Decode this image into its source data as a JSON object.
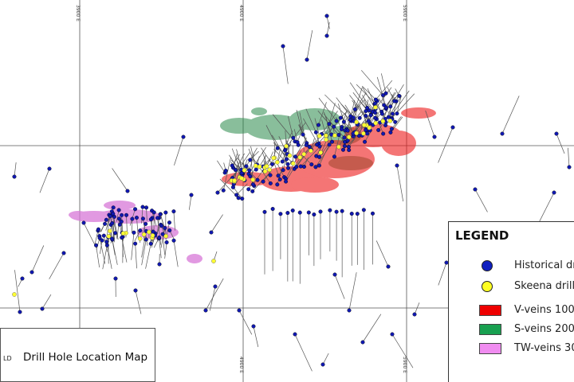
{
  "map": {
    "grid_labels": [
      "3900 E",
      "4900 E",
      "5900 E"
    ],
    "colors": {
      "historical": "#1018b0",
      "skeena": "#ffff33",
      "v_veins": "#ee1a1a",
      "s_veins": "#2a8a4a",
      "tw_veins": "#d777d7",
      "hole_trace": "#555555"
    }
  },
  "title_block": {
    "title": "Drill Hole Location Map",
    "cut_text": "LD"
  },
  "legend": {
    "title": "LEGEND",
    "items": [
      {
        "label": "Historical dri",
        "symbol": "dot",
        "color": "#1020c0"
      },
      {
        "label": "Skeena drillh",
        "symbol": "dot",
        "color": "#ffff22"
      },
      {
        "label": "V-veins 100",
        "symbol": "swatch",
        "color": "#ee0000"
      },
      {
        "label": "S-veins 200",
        "symbol": "swatch",
        "color": "#18a050"
      },
      {
        "label": "TW-veins 30",
        "symbol": "swatch",
        "color": "#f08cf0"
      }
    ]
  }
}
